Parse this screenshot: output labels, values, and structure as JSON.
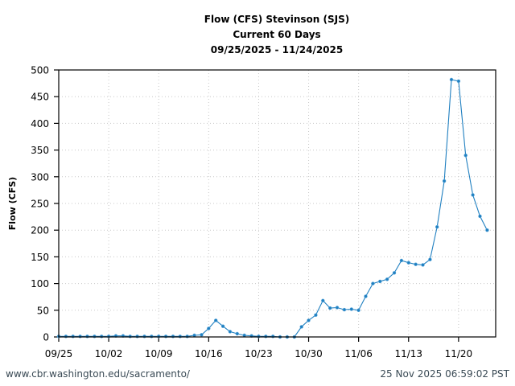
{
  "chart_data": {
    "type": "line",
    "title": [
      "Flow (CFS) Stevinson (SJS)",
      "Current 60 Days",
      "09/25/2025 - 11/24/2025"
    ],
    "xlabel": "",
    "ylabel": "Flow (CFS)",
    "ylim": [
      0,
      500
    ],
    "yticks": [
      0,
      50,
      100,
      150,
      200,
      250,
      300,
      350,
      400,
      450,
      500
    ],
    "xtick_labels": [
      "09/25",
      "10/02",
      "10/09",
      "10/16",
      "10/23",
      "10/30",
      "11/06",
      "11/13",
      "11/20"
    ],
    "xtick_day_index": [
      0,
      7,
      14,
      21,
      28,
      35,
      42,
      49,
      56
    ],
    "x_range_days": [
      0,
      61.2
    ],
    "grid": true,
    "legend": null,
    "series": [
      {
        "name": "Flow (CFS)",
        "color": "#1f7fc0",
        "start_date": "09/25/2025",
        "values": [
          1,
          1,
          1,
          1,
          1,
          1,
          1,
          1,
          2,
          2,
          1,
          1,
          1,
          1,
          1,
          1,
          1,
          1,
          1,
          3,
          4,
          16,
          31,
          20,
          10,
          6,
          3,
          2,
          1,
          1,
          1,
          0,
          0,
          0,
          19,
          31,
          41,
          68,
          54,
          55,
          51,
          52,
          50,
          76,
          100,
          104,
          108,
          120,
          143,
          139,
          136,
          135,
          145,
          206,
          292,
          482,
          479,
          340,
          266,
          226,
          200
        ]
      }
    ]
  },
  "footer": {
    "source_url": "www.cbr.washington.edu/sacramento/",
    "timestamp": "25 Nov 2025 06:59:02 PST"
  }
}
